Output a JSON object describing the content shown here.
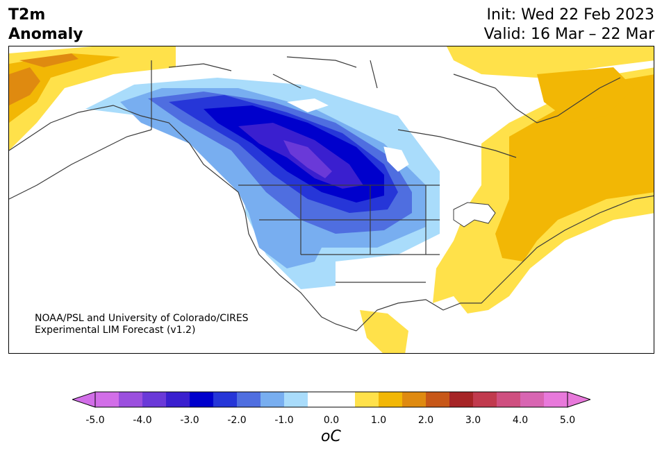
{
  "title": {
    "line1": "T2m",
    "line2": "Anomaly"
  },
  "init": {
    "line1": "Init: Wed 22 Feb 2023",
    "line2": "Valid: 16 Mar – 22 Mar"
  },
  "credit": {
    "line1": "NOAA/PSL and University of Colorado/CIRES",
    "line2": "Experimental LIM Forecast (v1.2)"
  },
  "colorbar": {
    "unit": "oC",
    "ticks": [
      "-5.0",
      "-4.0",
      "-3.0",
      "-2.0",
      "-1.0",
      "0.0",
      "1.0",
      "2.0",
      "3.0",
      "4.0",
      "5.0"
    ],
    "colors": [
      "#d26ee8",
      "#9b4fde",
      "#6a39d8",
      "#3a1fcf",
      "#0000cc",
      "#2636d8",
      "#4f6ee0",
      "#78aef0",
      "#a9dcfb",
      "#ffffff",
      "#ffffff",
      "#ffe14a",
      "#f2b705",
      "#df8a10",
      "#c75718",
      "#a62426",
      "#c13a4e",
      "#cf4f80",
      "#d865b2",
      "#e879db"
    ],
    "min_extend_color": "#d26ee8",
    "max_extend_color": "#e879db"
  }
}
